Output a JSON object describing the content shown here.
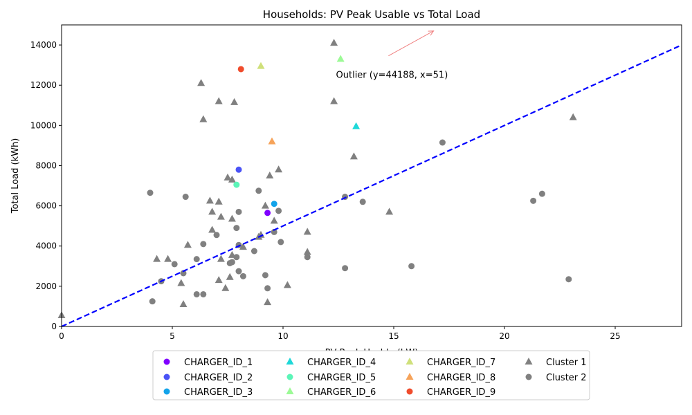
{
  "chart_data": {
    "type": "scatter",
    "title": "Households: PV Peak Usable vs Total Load",
    "xlabel": "PV Peak Usable (kW)",
    "ylabel": "Total Load (kWh)",
    "xlim": [
      0,
      28
    ],
    "ylim": [
      0,
      15000
    ],
    "xticks": [
      0,
      5,
      10,
      15,
      20,
      25
    ],
    "yticks": [
      0,
      2000,
      4000,
      6000,
      8000,
      10000,
      12000,
      14000
    ],
    "grid": false,
    "legend_position": "bottom-center",
    "reference_line": {
      "style": "dashed",
      "color": "#0000ff",
      "from": [
        0,
        0
      ],
      "to": [
        28,
        14000
      ]
    },
    "annotation": {
      "text": "Outlier (y=44188, x=51)",
      "point": [
        12.2,
        12500
      ],
      "arrow_to": [
        16.8,
        14700
      ],
      "color": "#f08080"
    },
    "series": [
      {
        "name": "CHARGER_ID_1",
        "marker": "circle",
        "color": "#8000ff",
        "points": [
          [
            9.3,
            5650
          ]
        ]
      },
      {
        "name": "CHARGER_ID_2",
        "marker": "circle",
        "color": "#4a53f6",
        "points": [
          [
            8.0,
            7800
          ]
        ]
      },
      {
        "name": "CHARGER_ID_3",
        "marker": "circle",
        "color": "#12a3ea",
        "points": [
          [
            9.6,
            6100
          ]
        ]
      },
      {
        "name": "CHARGER_ID_4",
        "marker": "triangle",
        "color": "#1ed8d8",
        "points": [
          [
            13.3,
            9950
          ]
        ]
      },
      {
        "name": "CHARGER_ID_5",
        "marker": "circle",
        "color": "#5cf5b8",
        "points": [
          [
            7.9,
            7050
          ]
        ]
      },
      {
        "name": "CHARGER_ID_6",
        "marker": "triangle",
        "color": "#9cfa96",
        "points": [
          [
            12.6,
            13300
          ]
        ]
      },
      {
        "name": "CHARGER_ID_7",
        "marker": "triangle",
        "color": "#cfe07a",
        "points": [
          [
            9.0,
            12950
          ]
        ]
      },
      {
        "name": "CHARGER_ID_8",
        "marker": "triangle",
        "color": "#f6a35a",
        "points": [
          [
            9.5,
            9200
          ]
        ]
      },
      {
        "name": "CHARGER_ID_9",
        "marker": "circle",
        "color": "#f04c2c",
        "points": [
          [
            8.1,
            12800
          ]
        ]
      },
      {
        "name": "Cluster 1",
        "marker": "triangle",
        "color": "#808080",
        "points": [
          [
            0.0,
            550
          ],
          [
            4.3,
            3350
          ],
          [
            4.8,
            3350
          ],
          [
            5.4,
            2150
          ],
          [
            5.5,
            1100
          ],
          [
            5.7,
            4050
          ],
          [
            6.3,
            12100
          ],
          [
            6.4,
            10300
          ],
          [
            6.7,
            6250
          ],
          [
            6.8,
            4800
          ],
          [
            6.8,
            5700
          ],
          [
            7.1,
            6200
          ],
          [
            7.1,
            11200
          ],
          [
            7.1,
            2300
          ],
          [
            7.2,
            5450
          ],
          [
            7.2,
            3350
          ],
          [
            7.4,
            1900
          ],
          [
            7.5,
            7400
          ],
          [
            7.6,
            2450
          ],
          [
            7.7,
            7300
          ],
          [
            7.7,
            5350
          ],
          [
            7.7,
            3550
          ],
          [
            7.8,
            11150
          ],
          [
            8.2,
            3950
          ],
          [
            8.9,
            4450
          ],
          [
            9.0,
            4550
          ],
          [
            9.2,
            6000
          ],
          [
            9.3,
            1200
          ],
          [
            9.4,
            7500
          ],
          [
            9.6,
            5250
          ],
          [
            9.8,
            7800
          ],
          [
            10.2,
            2050
          ],
          [
            11.1,
            4700
          ],
          [
            11.1,
            3700
          ],
          [
            12.3,
            14100
          ],
          [
            12.3,
            11200
          ],
          [
            13.2,
            8450
          ],
          [
            14.8,
            5700
          ],
          [
            23.1,
            10400
          ]
        ]
      },
      {
        "name": "Cluster 2",
        "marker": "circle",
        "color": "#808080",
        "points": [
          [
            4.0,
            6650
          ],
          [
            4.1,
            1250
          ],
          [
            4.5,
            2250
          ],
          [
            5.1,
            3100
          ],
          [
            5.5,
            2650
          ],
          [
            5.6,
            6450
          ],
          [
            6.1,
            3350
          ],
          [
            6.1,
            1600
          ],
          [
            6.4,
            4100
          ],
          [
            6.4,
            1600
          ],
          [
            7.0,
            4550
          ],
          [
            7.6,
            3150
          ],
          [
            7.7,
            3200
          ],
          [
            7.9,
            3450
          ],
          [
            7.9,
            4900
          ],
          [
            8.0,
            2750
          ],
          [
            8.0,
            5700
          ],
          [
            8.0,
            4050
          ],
          [
            8.2,
            2500
          ],
          [
            8.7,
            3750
          ],
          [
            8.9,
            6750
          ],
          [
            9.2,
            2550
          ],
          [
            9.3,
            1900
          ],
          [
            9.6,
            4700
          ],
          [
            9.8,
            5750
          ],
          [
            9.9,
            4200
          ],
          [
            11.1,
            3450
          ],
          [
            12.8,
            6450
          ],
          [
            12.8,
            2900
          ],
          [
            13.6,
            6200
          ],
          [
            15.8,
            3000
          ],
          [
            17.2,
            9150
          ],
          [
            21.3,
            6250
          ],
          [
            21.7,
            6600
          ],
          [
            22.9,
            2350
          ]
        ]
      }
    ]
  }
}
